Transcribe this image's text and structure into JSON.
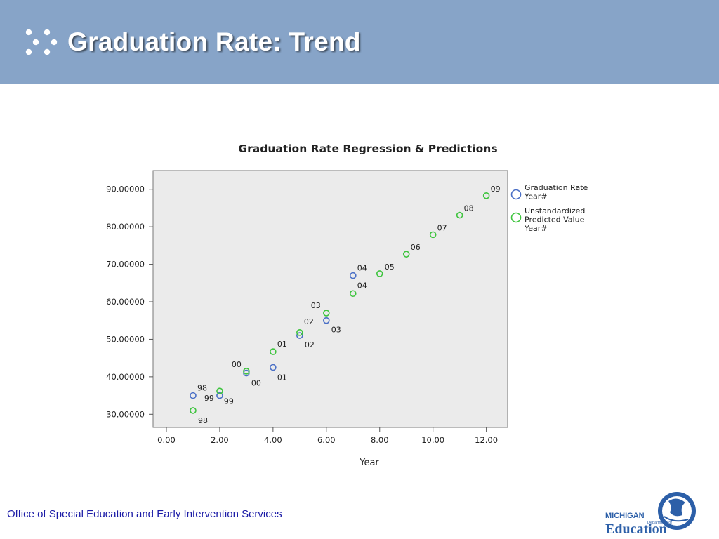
{
  "slide": {
    "title": "Graduation Rate: Trend",
    "footer": "Office of Special Education and Early Intervention Services",
    "logo": {
      "line1": "MICHIGAN",
      "line2": "Department of",
      "line3": "Education"
    }
  },
  "colors": {
    "header": "#87a4c8",
    "series1": "#4a6fc6",
    "series2": "#3ec43e",
    "footer_text": "#1a1aa6"
  },
  "chart_data": {
    "type": "scatter",
    "title": "Graduation Rate Regression & Predictions",
    "xlabel": "Year",
    "ylabel": "",
    "xlim": [
      -0.5,
      12.8
    ],
    "ylim": [
      26.5,
      95
    ],
    "xticks": [
      "0.00",
      "2.00",
      "4.00",
      "6.00",
      "8.00",
      "10.00",
      "12.00"
    ],
    "yticks": [
      "30.00000",
      "40.00000",
      "50.00000",
      "60.00000",
      "70.00000",
      "80.00000",
      "90.00000"
    ],
    "grid": false,
    "legend_position": "right",
    "series": [
      {
        "name": "Graduation Rate Year#",
        "color": "#4a6fc6",
        "points": [
          {
            "x": 1,
            "y": 35.0,
            "label": "98"
          },
          {
            "x": 2,
            "y": 35.0,
            "label": "99"
          },
          {
            "x": 3,
            "y": 41.0,
            "label": "00"
          },
          {
            "x": 4,
            "y": 42.5,
            "label": "01"
          },
          {
            "x": 5,
            "y": 51.0,
            "label": "02"
          },
          {
            "x": 6,
            "y": 55.0,
            "label": "03"
          },
          {
            "x": 7,
            "y": 67.0,
            "label": "04"
          }
        ]
      },
      {
        "name": "Unstandardized Predicted Value Year#",
        "color": "#3ec43e",
        "points": [
          {
            "x": 1,
            "y": 31.0,
            "label": "98"
          },
          {
            "x": 2,
            "y": 36.2,
            "label": "99"
          },
          {
            "x": 3,
            "y": 41.5,
            "label": "00"
          },
          {
            "x": 4,
            "y": 46.7,
            "label": "01"
          },
          {
            "x": 5,
            "y": 51.8,
            "label": "02"
          },
          {
            "x": 6,
            "y": 57.0,
            "label": "03"
          },
          {
            "x": 7,
            "y": 62.2,
            "label": "04"
          },
          {
            "x": 8,
            "y": 67.5,
            "label": "05"
          },
          {
            "x": 9,
            "y": 72.7,
            "label": "06"
          },
          {
            "x": 10,
            "y": 77.9,
            "label": "07"
          },
          {
            "x": 11,
            "y": 83.1,
            "label": "08"
          },
          {
            "x": 12,
            "y": 88.3,
            "label": "09"
          }
        ]
      }
    ],
    "legend": [
      {
        "lines": [
          "Graduation Rate",
          "Year#"
        ]
      },
      {
        "lines": [
          "Unstandardized",
          "Predicted Value",
          "Year#"
        ]
      }
    ]
  }
}
